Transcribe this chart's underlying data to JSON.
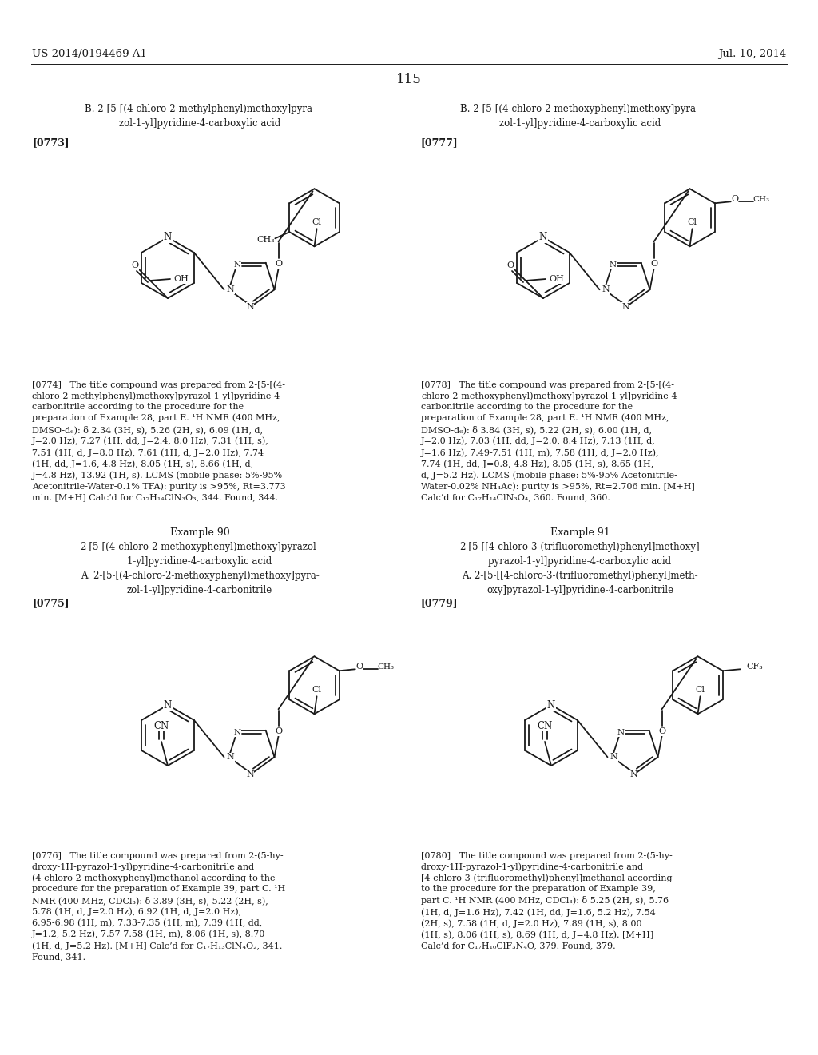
{
  "page_header_left": "US 2014/0194469 A1",
  "page_header_right": "Jul. 10, 2014",
  "page_number": "115",
  "bg": "#ffffff",
  "fg": "#1a1a1a",
  "title_B1": "B. 2-[5-[(4-chloro-2-methylphenyl)methoxy]pyra-\nzol-1-yl]pyridine-4-carboxylic acid",
  "tag_0773": "[0773]",
  "title_B2": "B. 2-[5-[(4-chloro-2-methoxyphenyl)methoxy]pyra-\nzol-1-yl]pyridine-4-carboxylic acid",
  "tag_0777": "[0777]",
  "body_0774": "[0774]   The title compound was prepared from 2-[5-[(4-chloro-2-methylphenyl)methoxy]pyrazol-1-yl]pyridine-4-carbonitrile according to the procedure for the preparation of Example 28, part E. ¹H NMR (400 MHz, DMSO-d₆): δ 2.34 (3H, s), 5.26 (2H, s), 6.09 (1H, d, J=2.0 Hz), 7.27 (1H, dd, J=2.4, 8.0 Hz), 7.31 (1H, s), 7.51 (1H, d, J=8.0 Hz), 7.61 (1H, d, J=2.0 Hz), 7.74 (1H, dd, J=1.6, 4.8 Hz), 8.05 (1H, s), 8.66 (1H, d, J=4.8 Hz), 13.92 (1H, s). LCMS (mobile phase: 5%-95% Acetonitrile-Water-0.1% TFA): purity is >95%, Rt=3.773 min. [M+H] Calc’d for C₁₇H₁₄ClN₃O₃, 344. Found, 344.",
  "body_0778": "[0778]   The title compound was prepared from 2-[5-[(4-chloro-2-methoxyphenyl)methoxy]pyrazol-1-yl]pyridine-4-carbonitrile according to the procedure for the preparation of Example 28, part E. ¹H NMR (400 MHz, DMSO-d₆): δ 3.84 (3H, s), 5.22 (2H, s), 6.00 (1H, d, J=2.0 Hz), 7.03 (1H, dd, J=2.0, 8.4 Hz), 7.13 (1H, d, J=1.6 Hz), 7.49-7.51 (1H, m), 7.58 (1H, d, J=2.0 Hz), 7.74 (1H, dd, J=0.8, 4.8 Hz), 8.05 (1H, s), 8.65 (1H, d, J=5.2 Hz). LCMS (mobile phase: 5%-95% Acetonitrile-Water-0.02% NH₄Ac): purity is >95%, Rt=2.706 min. [M+H] Calc’d for C₁₇H₁₄ClN₃O₄, 360. Found, 360.",
  "ex90_title": "Example 90",
  "ex90_sub": "2-[5-[(4-chloro-2-methoxyphenyl)methoxy]pyrazol-\n1-yl]pyridine-4-carboxylic acid",
  "ex90_A": "A. 2-[5-[(4-chloro-2-methoxyphenyl)methoxy]pyra-\nzol-1-yl]pyridine-4-carbonitrile",
  "tag_0775": "[0775]",
  "ex91_title": "Example 91",
  "ex91_sub": "2-[5-[[4-chloro-3-(trifluoromethyl)phenyl]methoxy]\npyrazol-1-yl]pyridine-4-carboxylic acid",
  "ex91_A": "A. 2-[5-[[4-chloro-3-(trifluoromethyl)phenyl]meth-\noxy]pyrazol-1-yl]pyridine-4-carbonitrile",
  "tag_0779": "[0779]",
  "body_0776": "[0776]   The title compound was prepared from 2-(5-hy-droxy-1H-pyrazol-1-yl)pyridine-4-carbonitrile and (4-chloro-2-methoxyphenyl)methanol according to the procedure for the preparation of Example 39, part C. ¹H NMR (400 MHz, CDCl₃): δ 3.89 (3H, s), 5.22 (2H, s), 5.78 (1H, d, J=2.0 Hz), 6.92 (1H, d, J=2.0 Hz), 6.95-6.98 (1H, m), 7.33-7.35 (1H, m), 7.39 (1H, dd, J=1.2, 5.2 Hz), 7.57-7.58 (1H, m), 8.06 (1H, s), 8.70 (1H, d, J=5.2 Hz). [M+H] Calc’d for C₁₇H₁₃ClN₄O₂, 341. Found, 341.",
  "body_0780": "[0780]   The title compound was prepared from 2-(5-hy-droxy-1H-pyrazol-1-yl)pyridine-4-carbonitrile and [4-chloro-3-(trifluoromethyl)phenyl]methanol according to the procedure for the preparation of Example 39, part C. ¹H NMR (400 MHz, CDCl₃): δ 5.25 (2H, s), 5.76 (1H, d, J=1.6 Hz), 7.42 (1H, dd, J=1.6, 5.2 Hz), 7.54 (2H, s), 7.58 (1H, d, J=2.0 Hz), 7.89 (1H, s), 8.00 (1H, s), 8.06 (1H, s), 8.69 (1H, d, J=4.8 Hz). [M+H] Calc’d for C₁₇H₁₀ClF₃N₄O, 379. Found, 379."
}
